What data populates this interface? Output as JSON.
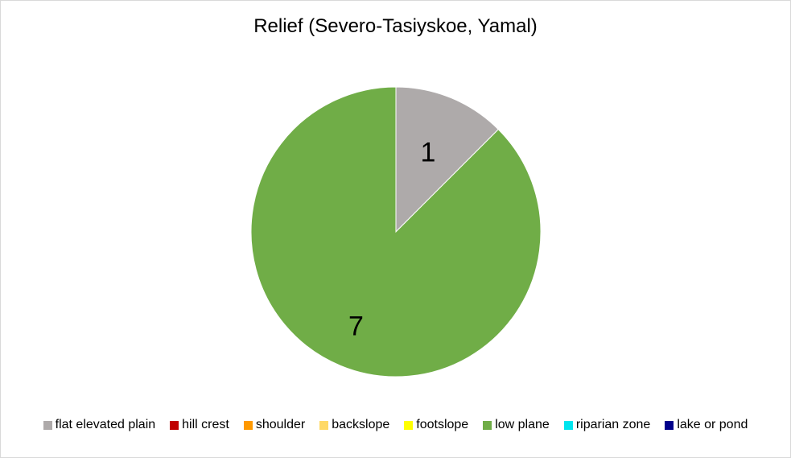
{
  "chart_data": {
    "type": "pie",
    "title": "Relief (Severo-Tasiyskoe, Yamal)",
    "categories": [
      "flat elevated plain",
      "hill crest",
      "shoulder",
      "backslope",
      "footslope",
      "low plane",
      "riparian zone",
      "lake or pond"
    ],
    "values": [
      1,
      0,
      0,
      0,
      0,
      7,
      0,
      0
    ],
    "colors": [
      "#aeaaaa",
      "#c00000",
      "#ff9900",
      "#ffd966",
      "#ffff00",
      "#70ad47",
      "#00e5ee",
      "#00008b"
    ],
    "legend_position": "bottom",
    "data_labels": [
      "1",
      "",
      "",
      "",
      "",
      "7",
      "",
      ""
    ]
  }
}
